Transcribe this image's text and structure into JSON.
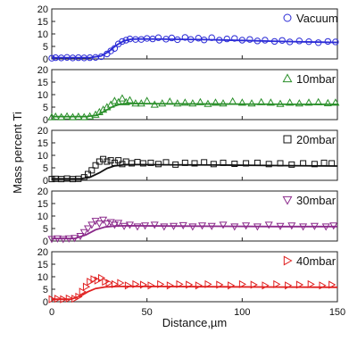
{
  "chart_data": {
    "type": "scatter",
    "ylabel": "Mass percent Ti",
    "xlabel": "Distance,µm",
    "xlim": [
      0,
      150
    ],
    "x_ticks": [
      "0",
      "50",
      "100",
      "150"
    ],
    "ylim": [
      0,
      20
    ],
    "y_ticks": [
      "0",
      "5",
      "10",
      "15",
      "20"
    ],
    "grid": false,
    "legend_position": "top-right",
    "panels": [
      {
        "series": {
          "name": "Vacuum",
          "color": "#2b2bd6",
          "marker": "circle",
          "points": [
            [
              0,
              0.3
            ],
            [
              2,
              0.5
            ],
            [
              5,
              0.4
            ],
            [
              8,
              0.6
            ],
            [
              11,
              0.4
            ],
            [
              14,
              0.5
            ],
            [
              17,
              0.4
            ],
            [
              20,
              0.5
            ],
            [
              23,
              0.6
            ],
            [
              26,
              0.9
            ],
            [
              29,
              2.0
            ],
            [
              31,
              3.2
            ],
            [
              33,
              4.2
            ],
            [
              35,
              6.0
            ],
            [
              37,
              7.0
            ],
            [
              39,
              7.5
            ],
            [
              41,
              8.0
            ],
            [
              44,
              7.8
            ],
            [
              47,
              7.8
            ],
            [
              50,
              8.2
            ],
            [
              53,
              8.0
            ],
            [
              56,
              8.5
            ],
            [
              60,
              7.9
            ],
            [
              63,
              8.4
            ],
            [
              66,
              7.7
            ],
            [
              70,
              8.6
            ],
            [
              73,
              7.8
            ],
            [
              77,
              8.3
            ],
            [
              80,
              7.6
            ],
            [
              84,
              8.5
            ],
            [
              88,
              7.5
            ],
            [
              92,
              8.0
            ],
            [
              96,
              8.2
            ],
            [
              100,
              7.5
            ],
            [
              104,
              7.8
            ],
            [
              108,
              7.2
            ],
            [
              112,
              7.5
            ],
            [
              117,
              7.0
            ],
            [
              121,
              7.4
            ],
            [
              125,
              6.8
            ],
            [
              130,
              7.2
            ],
            [
              135,
              6.9
            ],
            [
              140,
              6.5
            ],
            [
              145,
              7.0
            ],
            [
              149,
              6.8
            ]
          ],
          "fit": [
            [
              0,
              0.5
            ],
            [
              20,
              0.5
            ],
            [
              26,
              1.2
            ],
            [
              30,
              3.0
            ],
            [
              34,
              5.5
            ],
            [
              38,
              7.3
            ],
            [
              42,
              7.9
            ],
            [
              50,
              8.0
            ],
            [
              60,
              7.9
            ],
            [
              80,
              7.7
            ],
            [
              100,
              7.4
            ],
            [
              120,
              7.0
            ],
            [
              140,
              6.7
            ],
            [
              150,
              6.6
            ]
          ]
        }
      },
      {
        "series": {
          "name": "10mbar",
          "color": "#2a8f2a",
          "marker": "triangle-up",
          "points": [
            [
              0,
              1.0
            ],
            [
              2,
              1.2
            ],
            [
              5,
              1.0
            ],
            [
              8,
              1.3
            ],
            [
              11,
              1.0
            ],
            [
              14,
              1.2
            ],
            [
              17,
              1.0
            ],
            [
              20,
              1.3
            ],
            [
              23,
              2.0
            ],
            [
              25,
              3.0
            ],
            [
              27,
              4.0
            ],
            [
              29,
              5.0
            ],
            [
              31,
              6.0
            ],
            [
              33,
              7.5
            ],
            [
              35,
              7.0
            ],
            [
              37,
              8.5
            ],
            [
              39,
              7.0
            ],
            [
              41,
              7.8
            ],
            [
              44,
              6.5
            ],
            [
              47,
              6.5
            ],
            [
              50,
              7.5
            ],
            [
              54,
              6.0
            ],
            [
              58,
              6.5
            ],
            [
              62,
              7.2
            ],
            [
              66,
              6.5
            ],
            [
              70,
              6.8
            ],
            [
              74,
              6.5
            ],
            [
              78,
              7.0
            ],
            [
              82,
              6.3
            ],
            [
              86,
              6.8
            ],
            [
              90,
              6.5
            ],
            [
              95,
              7.3
            ],
            [
              100,
              6.8
            ],
            [
              105,
              6.5
            ],
            [
              110,
              7.0
            ],
            [
              115,
              6.8
            ],
            [
              120,
              6.3
            ],
            [
              125,
              6.8
            ],
            [
              130,
              6.5
            ],
            [
              135,
              6.8
            ],
            [
              140,
              7.0
            ],
            [
              145,
              6.6
            ],
            [
              149,
              6.8
            ]
          ],
          "fit": [
            [
              0,
              1.2
            ],
            [
              18,
              1.2
            ],
            [
              24,
              1.8
            ],
            [
              28,
              3.5
            ],
            [
              32,
              5.2
            ],
            [
              36,
              6.2
            ],
            [
              40,
              6.5
            ],
            [
              50,
              6.4
            ],
            [
              70,
              6.3
            ],
            [
              100,
              6.2
            ],
            [
              130,
              6.1
            ],
            [
              150,
              6.1
            ]
          ]
        }
      },
      {
        "series": {
          "name": "20mbar",
          "color": "#111111",
          "marker": "square",
          "points": [
            [
              0,
              0.5
            ],
            [
              2,
              0.6
            ],
            [
              5,
              0.5
            ],
            [
              8,
              0.7
            ],
            [
              11,
              0.5
            ],
            [
              14,
              0.6
            ],
            [
              17,
              1.2
            ],
            [
              19,
              2.5
            ],
            [
              21,
              4.0
            ],
            [
              23,
              6.0
            ],
            [
              25,
              7.5
            ],
            [
              27,
              8.5
            ],
            [
              29,
              7.5
            ],
            [
              31,
              8.0
            ],
            [
              33,
              7.0
            ],
            [
              35,
              8.0
            ],
            [
              37,
              6.5
            ],
            [
              39,
              7.5
            ],
            [
              42,
              6.8
            ],
            [
              45,
              7.3
            ],
            [
              48,
              6.8
            ],
            [
              52,
              7.0
            ],
            [
              56,
              6.5
            ],
            [
              60,
              7.2
            ],
            [
              65,
              6.3
            ],
            [
              70,
              7.0
            ],
            [
              75,
              6.8
            ],
            [
              80,
              7.2
            ],
            [
              85,
              6.5
            ],
            [
              90,
              7.0
            ],
            [
              96,
              6.6
            ],
            [
              102,
              6.8
            ],
            [
              108,
              7.0
            ],
            [
              114,
              6.5
            ],
            [
              120,
              6.8
            ],
            [
              126,
              6.3
            ],
            [
              132,
              6.8
            ],
            [
              138,
              6.5
            ],
            [
              143,
              7.0
            ],
            [
              147,
              6.8
            ]
          ],
          "fit": [
            [
              0,
              0.6
            ],
            [
              15,
              0.6
            ],
            [
              20,
              1.2
            ],
            [
              25,
              3.0
            ],
            [
              29,
              4.8
            ],
            [
              33,
              5.8
            ],
            [
              38,
              6.2
            ],
            [
              45,
              6.3
            ],
            [
              60,
              6.2
            ],
            [
              90,
              6.1
            ],
            [
              120,
              5.9
            ],
            [
              150,
              5.7
            ]
          ]
        }
      },
      {
        "series": {
          "name": "30mbar",
          "color": "#8b2a8b",
          "marker": "triangle-down",
          "points": [
            [
              0,
              0.8
            ],
            [
              3,
              1.0
            ],
            [
              6,
              0.8
            ],
            [
              9,
              1.0
            ],
            [
              12,
              1.2
            ],
            [
              15,
              2.0
            ],
            [
              17,
              3.5
            ],
            [
              19,
              5.0
            ],
            [
              21,
              6.5
            ],
            [
              23,
              8.0
            ],
            [
              25,
              7.0
            ],
            [
              27,
              8.5
            ],
            [
              29,
              7.0
            ],
            [
              31,
              7.5
            ],
            [
              33,
              6.5
            ],
            [
              35,
              7.2
            ],
            [
              38,
              6.0
            ],
            [
              41,
              6.5
            ],
            [
              45,
              5.8
            ],
            [
              49,
              6.2
            ],
            [
              54,
              6.5
            ],
            [
              59,
              5.8
            ],
            [
              64,
              6.0
            ],
            [
              69,
              6.3
            ],
            [
              74,
              5.8
            ],
            [
              79,
              6.2
            ],
            [
              84,
              6.0
            ],
            [
              90,
              6.5
            ],
            [
              96,
              5.8
            ],
            [
              102,
              6.2
            ],
            [
              108,
              5.8
            ],
            [
              114,
              6.5
            ],
            [
              120,
              6.0
            ],
            [
              126,
              6.2
            ],
            [
              132,
              5.8
            ],
            [
              138,
              6.0
            ],
            [
              144,
              5.8
            ],
            [
              148,
              6.2
            ]
          ],
          "fit": [
            [
              0,
              1.0
            ],
            [
              12,
              1.0
            ],
            [
              18,
              2.5
            ],
            [
              23,
              4.5
            ],
            [
              28,
              5.6
            ],
            [
              33,
              6.0
            ],
            [
              40,
              6.1
            ],
            [
              60,
              6.0
            ],
            [
              90,
              5.9
            ],
            [
              120,
              5.8
            ],
            [
              150,
              5.8
            ]
          ]
        }
      },
      {
        "series": {
          "name": "40mbar",
          "color": "#e02020",
          "marker": "triangle-right",
          "points": [
            [
              0,
              1.0
            ],
            [
              3,
              1.2
            ],
            [
              6,
              1.0
            ],
            [
              9,
              1.3
            ],
            [
              12,
              1.2
            ],
            [
              14,
              2.0
            ],
            [
              16,
              4.0
            ],
            [
              18,
              6.0
            ],
            [
              20,
              8.0
            ],
            [
              22,
              9.0
            ],
            [
              24,
              8.5
            ],
            [
              26,
              9.5
            ],
            [
              28,
              8.0
            ],
            [
              30,
              7.5
            ],
            [
              33,
              7.0
            ],
            [
              36,
              7.5
            ],
            [
              40,
              6.5
            ],
            [
              44,
              7.0
            ],
            [
              48,
              6.8
            ],
            [
              52,
              6.5
            ],
            [
              57,
              7.0
            ],
            [
              62,
              6.5
            ],
            [
              67,
              7.0
            ],
            [
              72,
              6.8
            ],
            [
              77,
              6.5
            ],
            [
              82,
              7.0
            ],
            [
              88,
              6.8
            ],
            [
              94,
              6.5
            ],
            [
              100,
              7.0
            ],
            [
              106,
              6.8
            ],
            [
              112,
              6.5
            ],
            [
              118,
              7.0
            ],
            [
              124,
              6.5
            ],
            [
              130,
              6.8
            ],
            [
              136,
              7.0
            ],
            [
              142,
              6.5
            ],
            [
              147,
              6.8
            ]
          ],
          "fit": [
            [
              0,
              1.0
            ],
            [
              10,
              1.0
            ],
            [
              15,
              2.2
            ],
            [
              19,
              4.0
            ],
            [
              23,
              5.3
            ],
            [
              28,
              5.9
            ],
            [
              35,
              6.1
            ],
            [
              50,
              6.1
            ],
            [
              80,
              6.0
            ],
            [
              110,
              5.9
            ],
            [
              150,
              5.8
            ]
          ]
        }
      }
    ]
  }
}
